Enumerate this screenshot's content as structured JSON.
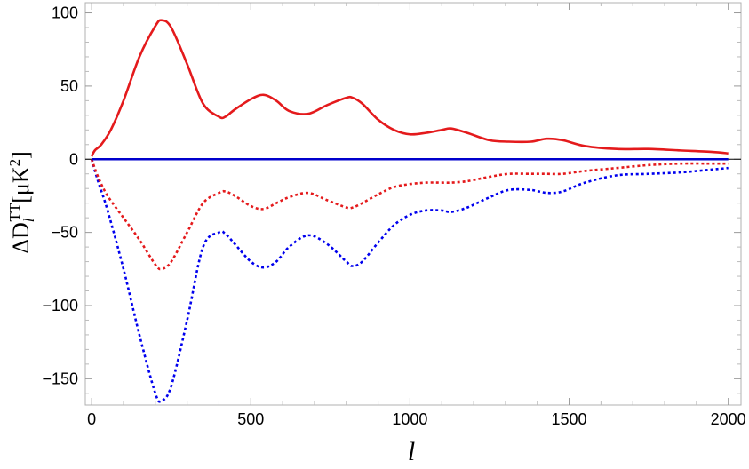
{
  "chart_data": {
    "type": "line",
    "title": "",
    "xlabel": "l",
    "ylabel": {
      "prefix": "ΔD",
      "sub": "l",
      "sup": "TT",
      "units_open": "[μK",
      "units_sup": "2",
      "units_close": "]"
    },
    "xlim": [
      -20,
      2040
    ],
    "ylim": [
      -168,
      107
    ],
    "x_ticks": [
      0,
      500,
      1000,
      1500,
      2000
    ],
    "x_tick_labels": [
      "0",
      "500",
      "1000",
      "1500",
      "2000"
    ],
    "y_ticks": [
      100,
      50,
      0,
      -50,
      -100,
      -150
    ],
    "y_tick_labels": [
      "100",
      "50",
      "0",
      "−50",
      "−100",
      "−150"
    ],
    "grid": false,
    "legend": "none",
    "series": [
      {
        "color": "#e41a1c",
        "style": "solid",
        "x": [
          0,
          10,
          30,
          60,
          100,
          150,
          200,
          220,
          250,
          300,
          350,
          400,
          420,
          450,
          500,
          540,
          580,
          620,
          680,
          740,
          800,
          820,
          850,
          900,
          950,
          1000,
          1050,
          1100,
          1130,
          1180,
          1250,
          1310,
          1380,
          1430,
          1480,
          1550,
          1650,
          1750,
          1850,
          1950,
          2000
        ],
        "y": [
          2,
          6,
          10,
          20,
          40,
          70,
          91,
          95,
          90,
          65,
          38,
          29,
          29,
          34,
          41,
          44,
          40,
          33,
          31,
          37,
          42,
          42,
          38,
          27,
          20,
          17,
          18,
          20,
          21,
          18,
          13,
          12,
          12,
          14,
          13,
          9,
          7,
          7,
          6,
          5,
          4
        ]
      },
      {
        "color": "#0000cc",
        "style": "solid",
        "x": [
          0,
          500,
          1000,
          1500,
          2000
        ],
        "y": [
          0,
          0,
          0,
          0,
          0
        ]
      },
      {
        "color": "#e41a1c",
        "style": "dotted",
        "x": [
          0,
          20,
          50,
          100,
          150,
          200,
          220,
          250,
          300,
          350,
          400,
          420,
          450,
          500,
          540,
          580,
          620,
          680,
          740,
          800,
          820,
          850,
          900,
          950,
          1000,
          1050,
          1100,
          1130,
          1180,
          1250,
          1310,
          1380,
          1430,
          1480,
          1550,
          1650,
          1750,
          1850,
          1950,
          2000
        ],
        "y": [
          0,
          -12,
          -25,
          -40,
          -55,
          -72,
          -75,
          -70,
          -50,
          -30,
          -23,
          -22,
          -25,
          -32,
          -34,
          -30,
          -26,
          -23,
          -28,
          -33,
          -33,
          -30,
          -24,
          -19,
          -17,
          -16,
          -16,
          -16,
          -15,
          -12,
          -10,
          -10,
          -10,
          -10,
          -8,
          -6,
          -4,
          -3,
          -3,
          -3
        ]
      },
      {
        "color": "#0000ee",
        "style": "dotted",
        "x": [
          0,
          20,
          50,
          100,
          150,
          200,
          220,
          250,
          300,
          350,
          400,
          420,
          450,
          500,
          540,
          580,
          620,
          680,
          740,
          800,
          820,
          850,
          900,
          950,
          1000,
          1050,
          1100,
          1130,
          1180,
          1250,
          1310,
          1380,
          1430,
          1480,
          1550,
          1650,
          1750,
          1850,
          1950,
          2000
        ],
        "y": [
          0,
          -15,
          -35,
          -75,
          -120,
          -160,
          -165,
          -155,
          -110,
          -60,
          -50,
          -51,
          -58,
          -70,
          -74,
          -70,
          -60,
          -52,
          -58,
          -70,
          -73,
          -70,
          -57,
          -45,
          -38,
          -35,
          -35,
          -36,
          -33,
          -26,
          -21,
          -21,
          -23,
          -22,
          -16,
          -11,
          -10,
          -9,
          -7,
          -6
        ]
      }
    ]
  }
}
